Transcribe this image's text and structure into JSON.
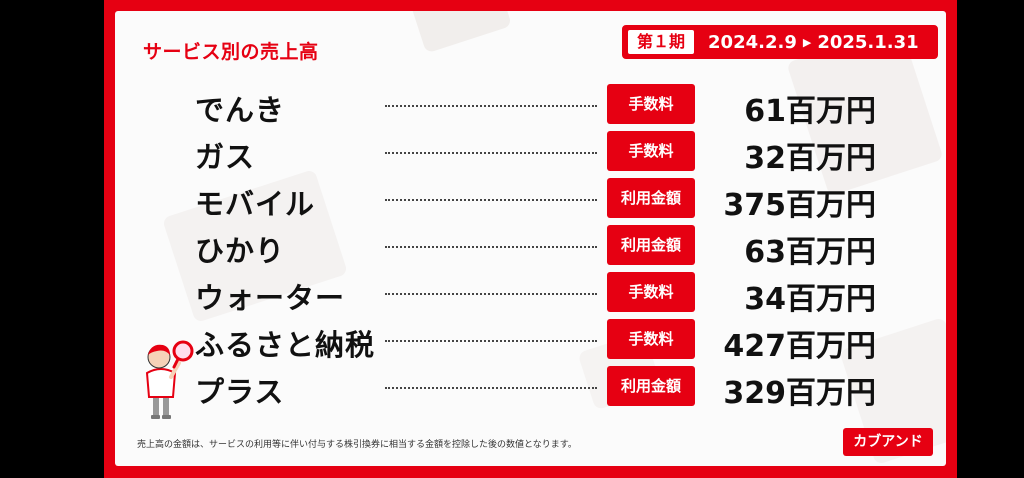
{
  "title": "サービス別の売上高",
  "period": {
    "label": "第１期",
    "start": "2024.2.9",
    "arrow": "▶",
    "end": "2025.1.31"
  },
  "rows": [
    {
      "service": "でんき",
      "tag": "手数料",
      "amount": "61百万円"
    },
    {
      "service": "ガス",
      "tag": "手数料",
      "amount": "32百万円"
    },
    {
      "service": "モバイル",
      "tag": "利用金額",
      "amount": "375百万円"
    },
    {
      "service": "ひかり",
      "tag": "利用金額",
      "amount": "63百万円"
    },
    {
      "service": "ウォーター",
      "tag": "手数料",
      "amount": "34百万円"
    },
    {
      "service": "ふるさと納税",
      "tag": "手数料",
      "amount": "427百万円"
    },
    {
      "service": "プラス",
      "tag": "利用金額",
      "amount": "329百万円"
    }
  ],
  "footnote": "売上高の金額は、サービスの利用等に伴い付与する株引換券に相当する金額を控除した後の数値となります。",
  "brand": "カブアンド",
  "colors": {
    "accent": "#e60012",
    "background": "#fbfbfb",
    "text": "#111111"
  },
  "icons": {
    "mascot": "magnifier-mascot-icon",
    "arrow": "play-arrow-icon"
  }
}
